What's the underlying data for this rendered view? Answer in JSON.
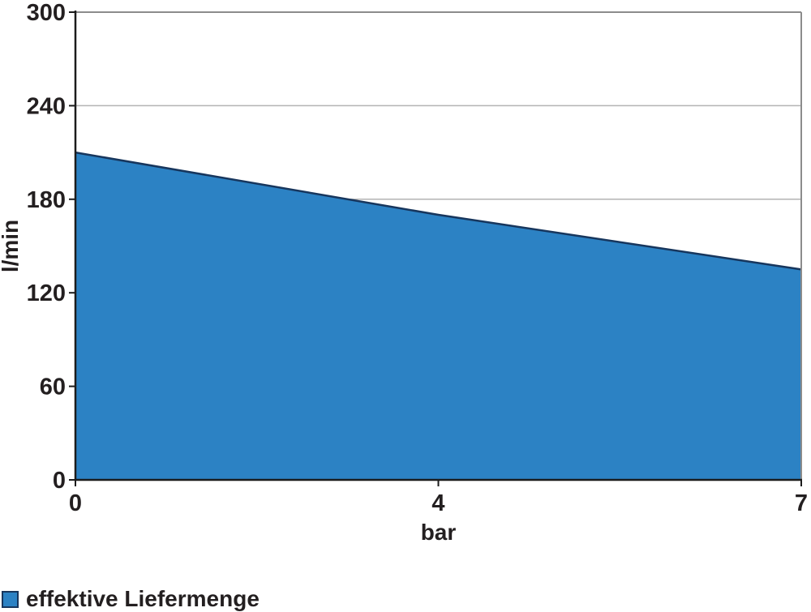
{
  "colors": {
    "area_fill": "#2c82c4",
    "area_edge": "#17365d",
    "axis": "#1c1c1c",
    "grid": "#b3b3b3",
    "plot_border": "#8c8c8c",
    "text": "#231f20"
  },
  "chart_data": {
    "type": "area",
    "x": [
      0,
      4,
      7
    ],
    "x_tick_labels": [
      "0",
      "4",
      "7"
    ],
    "values": [
      210,
      170,
      135
    ],
    "series": [
      {
        "name": "effektive Liefermenge",
        "values": [
          210,
          170,
          135
        ],
        "color": "#2c82c4"
      }
    ],
    "title": "",
    "xlabel": "bar",
    "ylabel": "l/min",
    "ylim": [
      0,
      300
    ],
    "y_ticks": [
      0,
      60,
      120,
      180,
      240,
      300
    ],
    "x_spacing": "categorical-even",
    "grid": "horizontal",
    "legend_position": "bottom-left"
  },
  "legend": {
    "label": "effektive Liefermenge",
    "swatch_color": "#2c82c4"
  },
  "axis_labels": {
    "x": "bar",
    "y": "l/min"
  }
}
